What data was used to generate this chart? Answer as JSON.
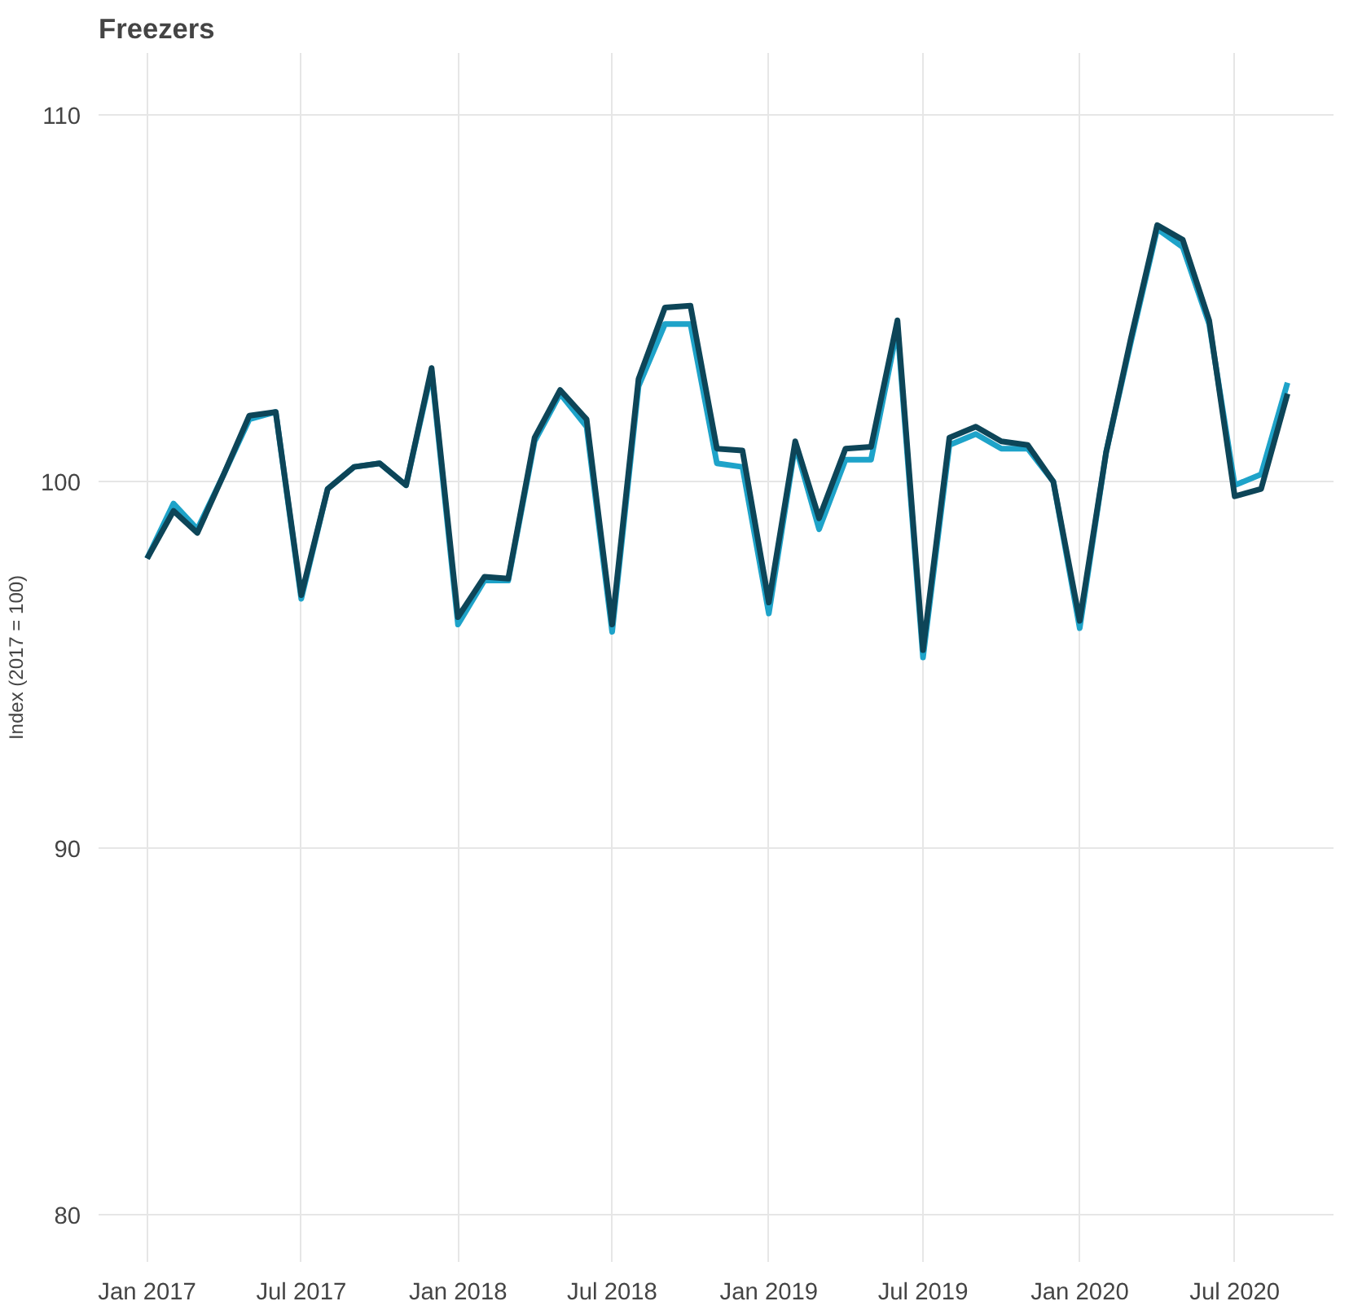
{
  "chart_data": {
    "type": "line",
    "title": "Freezers",
    "ylabel": "Index (2017 = 100)",
    "x": [
      "2017-01",
      "2017-02",
      "2017-03",
      "2017-04",
      "2017-05",
      "2017-06",
      "2017-07",
      "2017-08",
      "2017-09",
      "2017-10",
      "2017-11",
      "2017-12",
      "2018-01",
      "2018-02",
      "2018-03",
      "2018-04",
      "2018-05",
      "2018-06",
      "2018-07",
      "2018-08",
      "2018-09",
      "2018-10",
      "2018-11",
      "2018-12",
      "2019-01",
      "2019-02",
      "2019-03",
      "2019-04",
      "2019-05",
      "2019-06",
      "2019-07",
      "2019-08",
      "2019-09",
      "2019-10",
      "2019-11",
      "2019-12",
      "2020-01",
      "2020-02",
      "2020-03",
      "2020-04",
      "2020-05",
      "2020-06",
      "2020-07",
      "2020-08",
      "2020-09"
    ],
    "series": [
      {
        "color": "#1ea3c9",
        "values": [
          97.9,
          99.4,
          98.7,
          100.2,
          101.7,
          101.9,
          96.8,
          99.8,
          100.4,
          100.5,
          99.9,
          103.0,
          96.1,
          97.3,
          97.3,
          101.1,
          102.4,
          101.5,
          95.9,
          102.6,
          104.3,
          104.3,
          100.5,
          100.4,
          96.4,
          101.0,
          98.7,
          100.6,
          100.6,
          104.2,
          95.2,
          101.0,
          101.3,
          100.9,
          100.9,
          100.0,
          96.0,
          100.8,
          103.8,
          106.9,
          106.4,
          104.3,
          99.9,
          100.2,
          102.7
        ]
      },
      {
        "color": "#0d4558",
        "values": [
          97.9,
          99.2,
          98.6,
          100.2,
          101.8,
          101.9,
          96.9,
          99.8,
          100.4,
          100.5,
          99.9,
          103.1,
          96.3,
          97.4,
          97.35,
          101.2,
          102.5,
          101.7,
          96.1,
          102.8,
          104.75,
          104.8,
          100.9,
          100.85,
          96.7,
          101.1,
          99.0,
          100.9,
          100.95,
          104.4,
          95.4,
          101.2,
          101.5,
          101.1,
          101.0,
          100.0,
          96.2,
          100.8,
          103.9,
          107.0,
          106.6,
          104.4,
          99.6,
          99.8,
          102.4
        ]
      }
    ],
    "xlim": [
      "2016-11-05",
      "2020-10-25"
    ],
    "ylim": [
      78.7,
      111.7
    ],
    "xticks": [
      {
        "value": "2017-01",
        "label": "Jan 2017"
      },
      {
        "value": "2017-07",
        "label": "Jul 2017"
      },
      {
        "value": "2018-01",
        "label": "Jan 2018"
      },
      {
        "value": "2018-07",
        "label": "Jul 2018"
      },
      {
        "value": "2019-01",
        "label": "Jan 2019"
      },
      {
        "value": "2019-07",
        "label": "Jul 2019"
      },
      {
        "value": "2020-01",
        "label": "Jan 2020"
      },
      {
        "value": "2020-07",
        "label": "Jul 2020"
      }
    ],
    "yticks": [
      80,
      90,
      100,
      110
    ],
    "grid": true,
    "line_style": "solid"
  }
}
